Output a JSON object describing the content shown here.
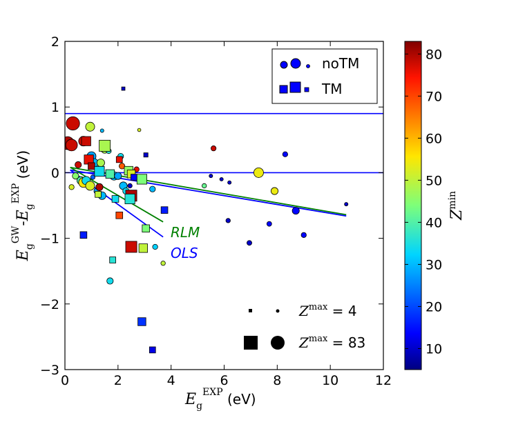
{
  "chart_data": {
    "type": "scatter",
    "xlabel": "E_g^EXP (eV)",
    "ylabel": "E_g^GW - E_g^EXP (eV)",
    "xlim": [
      0,
      12
    ],
    "ylim": [
      -3,
      2
    ],
    "xticks": [
      "0",
      "2",
      "4",
      "6",
      "8",
      "10",
      "12"
    ],
    "yticks": [
      "2",
      "1",
      "0",
      "−1",
      "−2",
      "−3"
    ],
    "colorbar": {
      "label": "Z^min",
      "range": [
        5,
        83
      ],
      "ticks": [
        "80",
        "70",
        "60",
        "50",
        "40",
        "30",
        "20",
        "10"
      ]
    },
    "size_encoding": "Z^max",
    "legend": {
      "position": "top-right",
      "entries": [
        "noTM",
        "TM"
      ]
    },
    "size_legend": {
      "small": "Z^max = 4",
      "large": "Z^max = 83",
      "small_value": "4",
      "large_value": "83"
    },
    "fit_labels": {
      "rlm": "RLM",
      "ols": "OLS"
    },
    "hlines": [
      0.9,
      0.0
    ],
    "fit_lines": [
      {
        "name": "RLM",
        "color": "#008000",
        "x": [
          0.2,
          10.6
        ],
        "y": [
          0.08,
          -0.64
        ]
      },
      {
        "name": "OLS",
        "color": "#0000ff",
        "x": [
          0.2,
          10.6
        ],
        "y": [
          0.04,
          -0.66
        ]
      },
      {
        "name": "RLM-TM",
        "color": "#008000",
        "x": [
          0.2,
          3.7
        ],
        "y": [
          0.08,
          -0.75
        ]
      },
      {
        "name": "OLS-TM",
        "color": "#0000ff",
        "x": [
          0.2,
          3.7
        ],
        "y": [
          0.04,
          -0.98
        ]
      }
    ],
    "series": [
      {
        "name": "noTM",
        "marker": "circle",
        "points": [
          {
            "x": 0.3,
            "y": 0.75,
            "zmin": 78,
            "zmax": 83
          },
          {
            "x": 0.1,
            "y": 0.45,
            "zmin": 80,
            "zmax": 80
          },
          {
            "x": 0.25,
            "y": 0.42,
            "zmin": 78,
            "zmax": 70
          },
          {
            "x": 0.7,
            "y": 0.48,
            "zmin": 78,
            "zmax": 55
          },
          {
            "x": 0.95,
            "y": 0.7,
            "zmin": 50,
            "zmax": 50
          },
          {
            "x": 1.4,
            "y": 0.64,
            "zmin": 30,
            "zmax": 8
          },
          {
            "x": 2.8,
            "y": 0.65,
            "zmin": 52,
            "zmax": 6
          },
          {
            "x": 1.5,
            "y": 0.35,
            "zmin": 48,
            "zmax": 35
          },
          {
            "x": 1.65,
            "y": 0.33,
            "zmin": 36,
            "zmax": 20
          },
          {
            "x": 0.5,
            "y": 0.12,
            "zmin": 78,
            "zmax": 30
          },
          {
            "x": 1.0,
            "y": 0.25,
            "zmin": 28,
            "zmax": 50
          },
          {
            "x": 1.1,
            "y": 0.15,
            "zmin": 30,
            "zmax": 45
          },
          {
            "x": 1.35,
            "y": 0.15,
            "zmin": 48,
            "zmax": 40
          },
          {
            "x": 0.4,
            "y": -0.05,
            "zmin": 45,
            "zmax": 30
          },
          {
            "x": 0.6,
            "y": -0.12,
            "zmin": 40,
            "zmax": 40
          },
          {
            "x": 0.7,
            "y": -0.15,
            "zmin": 55,
            "zmax": 55
          },
          {
            "x": 0.8,
            "y": -0.12,
            "zmin": 34,
            "zmax": 45
          },
          {
            "x": 0.95,
            "y": -0.2,
            "zmin": 52,
            "zmax": 50
          },
          {
            "x": 1.05,
            "y": -0.07,
            "zmin": 22,
            "zmax": 15
          },
          {
            "x": 1.2,
            "y": -0.28,
            "zmin": 28,
            "zmax": 25
          },
          {
            "x": 1.4,
            "y": -0.35,
            "zmin": 30,
            "zmax": 40
          },
          {
            "x": 1.3,
            "y": -0.22,
            "zmin": 80,
            "zmax": 35
          },
          {
            "x": 1.85,
            "y": -0.05,
            "zmin": 30,
            "zmax": 45
          },
          {
            "x": 2.1,
            "y": 0.25,
            "zmin": 34,
            "zmax": 25
          },
          {
            "x": 2.2,
            "y": -0.2,
            "zmin": 30,
            "zmax": 40
          },
          {
            "x": 2.3,
            "y": -0.28,
            "zmin": 34,
            "zmax": 30
          },
          {
            "x": 2.0,
            "y": -0.05,
            "zmin": 28,
            "zmax": 35
          },
          {
            "x": 2.15,
            "y": 0.1,
            "zmin": 68,
            "zmax": 25
          },
          {
            "x": 2.45,
            "y": -0.2,
            "zmin": 10,
            "zmax": 15
          },
          {
            "x": 2.7,
            "y": 0.05,
            "zmin": 76,
            "zmax": 20
          },
          {
            "x": 3.3,
            "y": -0.25,
            "zmin": 30,
            "zmax": 25
          },
          {
            "x": 3.4,
            "y": -1.13,
            "zmin": 32,
            "zmax": 20
          },
          {
            "x": 3.7,
            "y": -1.38,
            "zmin": 50,
            "zmax": 15
          },
          {
            "x": 1.7,
            "y": -1.65,
            "zmin": 34,
            "zmax": 30
          },
          {
            "x": 0.25,
            "y": -0.22,
            "zmin": 52,
            "zmax": 20
          },
          {
            "x": 5.25,
            "y": -0.2,
            "zmin": 42,
            "zmax": 15
          },
          {
            "x": 5.6,
            "y": 0.37,
            "zmin": 78,
            "zmax": 20
          },
          {
            "x": 5.5,
            "y": -0.05,
            "zmin": 10,
            "zmax": 8
          },
          {
            "x": 5.9,
            "y": -0.1,
            "zmin": 10,
            "zmax": 8
          },
          {
            "x": 6.2,
            "y": -0.15,
            "zmin": 10,
            "zmax": 8
          },
          {
            "x": 6.15,
            "y": -0.73,
            "zmin": 10,
            "zmax": 15
          },
          {
            "x": 6.95,
            "y": -1.07,
            "zmin": 10,
            "zmax": 18
          },
          {
            "x": 7.3,
            "y": 0.0,
            "zmin": 54,
            "zmax": 55
          },
          {
            "x": 7.9,
            "y": -0.28,
            "zmin": 54,
            "zmax": 35
          },
          {
            "x": 8.3,
            "y": 0.28,
            "zmin": 14,
            "zmax": 20
          },
          {
            "x": 7.7,
            "y": -0.78,
            "zmin": 14,
            "zmax": 18
          },
          {
            "x": 8.7,
            "y": -0.58,
            "zmin": 14,
            "zmax": 35
          },
          {
            "x": 9.0,
            "y": -0.95,
            "zmin": 14,
            "zmax": 20
          },
          {
            "x": 10.6,
            "y": -0.48,
            "zmin": 10,
            "zmax": 8
          }
        ]
      },
      {
        "name": "TM",
        "marker": "square",
        "points": [
          {
            "x": 2.2,
            "y": 1.28,
            "zmin": 10,
            "zmax": 8
          },
          {
            "x": 0.8,
            "y": 0.48,
            "zmin": 78,
            "zmax": 55
          },
          {
            "x": 1.5,
            "y": 0.41,
            "zmin": 48,
            "zmax": 70
          },
          {
            "x": 3.05,
            "y": 0.27,
            "zmin": 10,
            "zmax": 15
          },
          {
            "x": 0.9,
            "y": 0.2,
            "zmin": 76,
            "zmax": 55
          },
          {
            "x": 2.05,
            "y": 0.2,
            "zmin": 76,
            "zmax": 30
          },
          {
            "x": 1.0,
            "y": 0.1,
            "zmin": 80,
            "zmax": 35
          },
          {
            "x": 1.3,
            "y": 0.02,
            "zmin": 34,
            "zmax": 60
          },
          {
            "x": 1.7,
            "y": -0.02,
            "zmin": 40,
            "zmax": 50
          },
          {
            "x": 2.4,
            "y": 0.03,
            "zmin": 46,
            "zmax": 50
          },
          {
            "x": 2.5,
            "y": -0.02,
            "zmin": 52,
            "zmax": 45
          },
          {
            "x": 2.6,
            "y": -0.07,
            "zmin": 14,
            "zmax": 30
          },
          {
            "x": 2.9,
            "y": -0.1,
            "zmin": 44,
            "zmax": 60
          },
          {
            "x": 1.25,
            "y": -0.33,
            "zmin": 50,
            "zmax": 30
          },
          {
            "x": 1.9,
            "y": -0.4,
            "zmin": 34,
            "zmax": 35
          },
          {
            "x": 2.5,
            "y": -0.35,
            "zmin": 80,
            "zmax": 70
          },
          {
            "x": 2.45,
            "y": -0.4,
            "zmin": 36,
            "zmax": 60
          },
          {
            "x": 2.05,
            "y": -0.65,
            "zmin": 70,
            "zmax": 35
          },
          {
            "x": 3.75,
            "y": -0.57,
            "zmin": 16,
            "zmax": 35
          },
          {
            "x": 3.05,
            "y": -0.85,
            "zmin": 44,
            "zmax": 40
          },
          {
            "x": 0.7,
            "y": -0.95,
            "zmin": 16,
            "zmax": 35
          },
          {
            "x": 2.5,
            "y": -1.13,
            "zmin": 78,
            "zmax": 70
          },
          {
            "x": 2.95,
            "y": -1.15,
            "zmin": 50,
            "zmax": 50
          },
          {
            "x": 1.8,
            "y": -1.33,
            "zmin": 36,
            "zmax": 30
          },
          {
            "x": 2.9,
            "y": -2.27,
            "zmin": 18,
            "zmax": 45
          },
          {
            "x": 3.3,
            "y": -2.7,
            "zmin": 12,
            "zmax": 30
          }
        ]
      }
    ]
  }
}
